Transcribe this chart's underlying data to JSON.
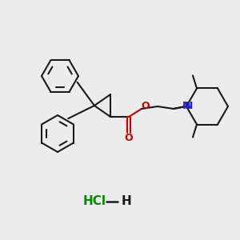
{
  "bg_color": "#ececec",
  "bond_color": "#1a1a1a",
  "oxygen_color": "#cc0000",
  "nitrogen_color": "#2222cc",
  "chlorine_color": "#008800",
  "line_width": 1.5,
  "figsize": [
    3.0,
    3.0
  ],
  "dpi": 100,
  "hcl_text": "HCl",
  "h_text": "H",
  "n_text": "N",
  "o_text": "O"
}
